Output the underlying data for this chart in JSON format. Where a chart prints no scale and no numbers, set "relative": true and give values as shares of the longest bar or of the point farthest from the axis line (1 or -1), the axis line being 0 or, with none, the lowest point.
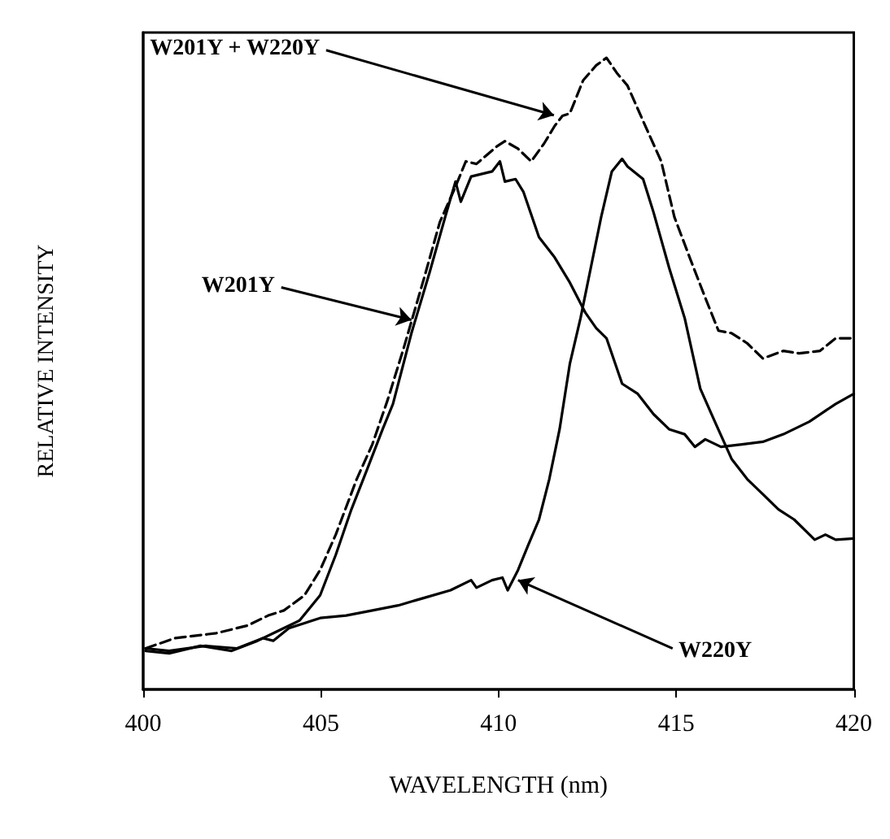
{
  "chart_data": {
    "type": "line",
    "relative": true,
    "xlabel": "WAVELENGTH (nm)",
    "ylabel": "RELATIVE INTENSITY",
    "xlim": [
      400,
      420
    ],
    "xticks": [
      400,
      405,
      410,
      415,
      420
    ],
    "grid": false,
    "marker": "none",
    "annotations": [
      {
        "text": "W201Y + W220Y",
        "x": 411.56,
        "y": 0.909
      },
      {
        "text": "W201Y",
        "x": 407.55,
        "y": 0.585
      },
      {
        "text": "W220Y",
        "x": 410.55,
        "y": 0.173
      }
    ],
    "series": [
      {
        "color": "#000000",
        "line_style": "dashed",
        "x": [
          400.07,
          400.88,
          402.05,
          402.93,
          403.52,
          403.96,
          404.54,
          404.98,
          405.42,
          406.01,
          406.45,
          406.89,
          407.33,
          407.91,
          408.35,
          408.79,
          409.08,
          409.38,
          409.96,
          410.18,
          410.55,
          410.92,
          411.28,
          411.58,
          411.8,
          412.01,
          412.38,
          412.75,
          413.04,
          413.33,
          413.63,
          414.07,
          414.58,
          414.95,
          415.38,
          415.82,
          416.19,
          416.56,
          417.0,
          417.44,
          418.02,
          418.46,
          419.05,
          419.49,
          420
        ],
        "values": [
          0.065,
          0.081,
          0.089,
          0.101,
          0.117,
          0.125,
          0.149,
          0.189,
          0.245,
          0.333,
          0.388,
          0.46,
          0.54,
          0.652,
          0.74,
          0.796,
          0.836,
          0.832,
          0.86,
          0.868,
          0.856,
          0.836,
          0.864,
          0.892,
          0.908,
          0.912,
          0.964,
          0.988,
          1.0,
          0.976,
          0.956,
          0.9,
          0.836,
          0.748,
          0.684,
          0.62,
          0.568,
          0.564,
          0.548,
          0.524,
          0.536,
          0.532,
          0.536,
          0.556,
          0.556
        ]
      },
      {
        "color": "#000000",
        "line_style": "solid",
        "x": [
          400.07,
          400.73,
          401.61,
          402.49,
          403.22,
          403.81,
          404.4,
          404.98,
          405.42,
          405.86,
          406.3,
          406.74,
          407.03,
          407.55,
          408.06,
          408.5,
          408.79,
          408.94,
          409.23,
          409.82,
          410.04,
          410.18,
          410.48,
          410.7,
          411.14,
          411.58,
          412.01,
          412.45,
          412.75,
          413.04,
          413.48,
          413.92,
          414.36,
          414.8,
          415.24,
          415.53,
          415.82,
          416.26,
          416.85,
          417.44,
          418.02,
          418.75,
          419.49,
          420
        ],
        "values": [
          0.061,
          0.057,
          0.069,
          0.061,
          0.077,
          0.093,
          0.109,
          0.149,
          0.213,
          0.285,
          0.348,
          0.412,
          0.452,
          0.564,
          0.66,
          0.748,
          0.804,
          0.772,
          0.812,
          0.82,
          0.836,
          0.804,
          0.808,
          0.788,
          0.716,
          0.684,
          0.644,
          0.596,
          0.572,
          0.556,
          0.484,
          0.468,
          0.436,
          0.412,
          0.404,
          0.384,
          0.396,
          0.384,
          0.388,
          0.392,
          0.404,
          0.424,
          0.452,
          0.468
        ]
      },
      {
        "color": "#000000",
        "line_style": "solid",
        "x": [
          400.07,
          400.73,
          401.76,
          402.64,
          403.37,
          403.66,
          404.1,
          404.54,
          404.98,
          405.71,
          406.45,
          407.18,
          407.91,
          408.65,
          409.23,
          409.38,
          409.82,
          410.11,
          410.26,
          410.55,
          410.84,
          411.14,
          411.43,
          411.72,
          412.01,
          412.31,
          412.6,
          412.89,
          413.19,
          413.48,
          413.63,
          414.07,
          414.36,
          414.8,
          415.24,
          415.68,
          416.12,
          416.56,
          417.0,
          417.44,
          417.88,
          418.32,
          418.9,
          419.2,
          419.49,
          420
        ],
        "values": [
          0.065,
          0.061,
          0.069,
          0.065,
          0.081,
          0.077,
          0.097,
          0.105,
          0.113,
          0.117,
          0.125,
          0.133,
          0.145,
          0.157,
          0.173,
          0.161,
          0.173,
          0.177,
          0.157,
          0.189,
          0.229,
          0.269,
          0.333,
          0.412,
          0.516,
          0.588,
          0.668,
          0.748,
          0.82,
          0.84,
          0.828,
          0.808,
          0.756,
          0.668,
          0.588,
          0.476,
          0.42,
          0.365,
          0.333,
          0.309,
          0.285,
          0.269,
          0.237,
          0.245,
          0.237,
          0.239
        ]
      }
    ]
  }
}
